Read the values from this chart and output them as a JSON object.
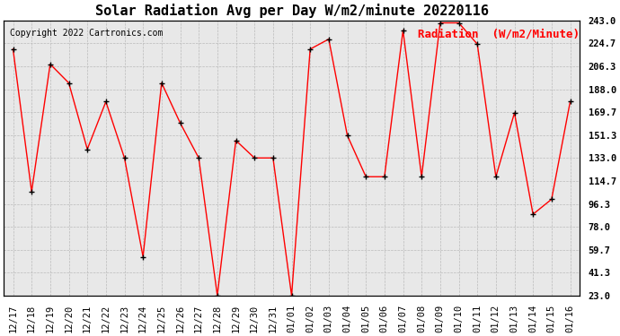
{
  "title": "Solar Radiation Avg per Day W/m2/minute 20220116",
  "copyright": "Copyright 2022 Cartronics.com",
  "legend_label": "Radiation  (W/m2/Minute)",
  "x_labels": [
    "12/17",
    "12/18",
    "12/19",
    "12/20",
    "12/21",
    "12/22",
    "12/23",
    "12/24",
    "12/25",
    "12/26",
    "12/27",
    "12/28",
    "12/29",
    "12/30",
    "12/31",
    "01/01",
    "01/02",
    "01/03",
    "01/04",
    "01/05",
    "01/06",
    "01/07",
    "01/08",
    "01/09",
    "01/10",
    "01/11",
    "01/12",
    "01/13",
    "01/14",
    "01/15",
    "01/16"
  ],
  "y_values": [
    220.0,
    106.0,
    208.0,
    193.0,
    140.0,
    178.0,
    133.0,
    54.0,
    193.0,
    161.0,
    133.0,
    23.0,
    147.0,
    133.0,
    133.0,
    23.0,
    220.0,
    228.0,
    151.0,
    118.0,
    118.0,
    235.0,
    118.0,
    241.0,
    241.0,
    224.0,
    118.0,
    169.0,
    88.0,
    100.0,
    178.0
  ],
  "y_ticks": [
    23.0,
    41.3,
    59.7,
    78.0,
    96.3,
    114.7,
    133.0,
    151.3,
    169.7,
    188.0,
    206.3,
    224.7,
    243.0
  ],
  "ylim": [
    23.0,
    243.0
  ],
  "line_color": "red",
  "marker_color": "black",
  "grid_color": "#bbbbbb",
  "bg_color": "#ffffff",
  "plot_bg_color": "#e8e8e8",
  "title_fontsize": 11,
  "copyright_fontsize": 7,
  "legend_fontsize": 9,
  "tick_fontsize": 7.5
}
